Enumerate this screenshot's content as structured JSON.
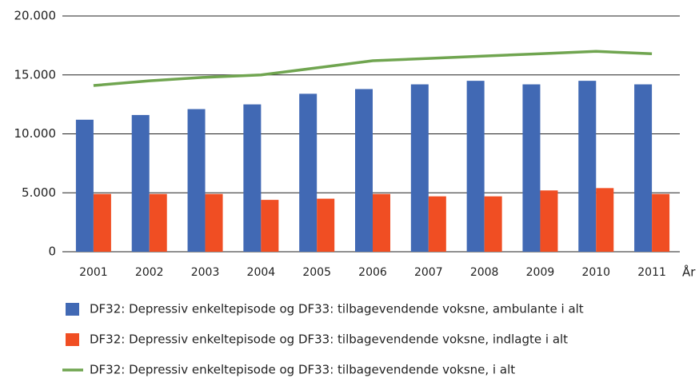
{
  "chart_data": {
    "type": "bar",
    "categories": [
      "2001",
      "2002",
      "2003",
      "2004",
      "2005",
      "2006",
      "2007",
      "2008",
      "2009",
      "2010",
      "2011"
    ],
    "x_label": "År",
    "series": [
      {
        "name": "DF32: Depressiv enkeltepisode og DF33: tilbagevendende voksne, ambulante i alt",
        "type": "bar",
        "color": "#4169b4",
        "values": [
          11200,
          11600,
          12100,
          12500,
          13400,
          13800,
          14200,
          14500,
          14200,
          14500,
          14200
        ]
      },
      {
        "name": "DF32: Depressiv enkeltepisode og DF33: tilbagevendende voksne, indlagte i alt",
        "type": "bar",
        "color": "#f04e23",
        "values": [
          4900,
          4900,
          4900,
          4400,
          4500,
          4900,
          4700,
          4700,
          5200,
          5400,
          4900
        ]
      },
      {
        "name": "DF32: Depressiv enkeltepisode og DF33: tilbagevendende voksne,  i alt",
        "type": "line",
        "color": "#70a550",
        "values": [
          14100,
          14500,
          14800,
          15000,
          15600,
          16200,
          16400,
          16600,
          16800,
          17000,
          16800
        ]
      }
    ],
    "ylim": [
      0,
      20000
    ],
    "yticks": [
      0,
      {
        "value": 5000,
        "label": "5.000"
      },
      {
        "value": 10000,
        "label": "10.000"
      },
      {
        "value": 15000,
        "label": "15.000"
      },
      {
        "value": 20000,
        "label": "20.000"
      }
    ],
    "grid": true
  }
}
